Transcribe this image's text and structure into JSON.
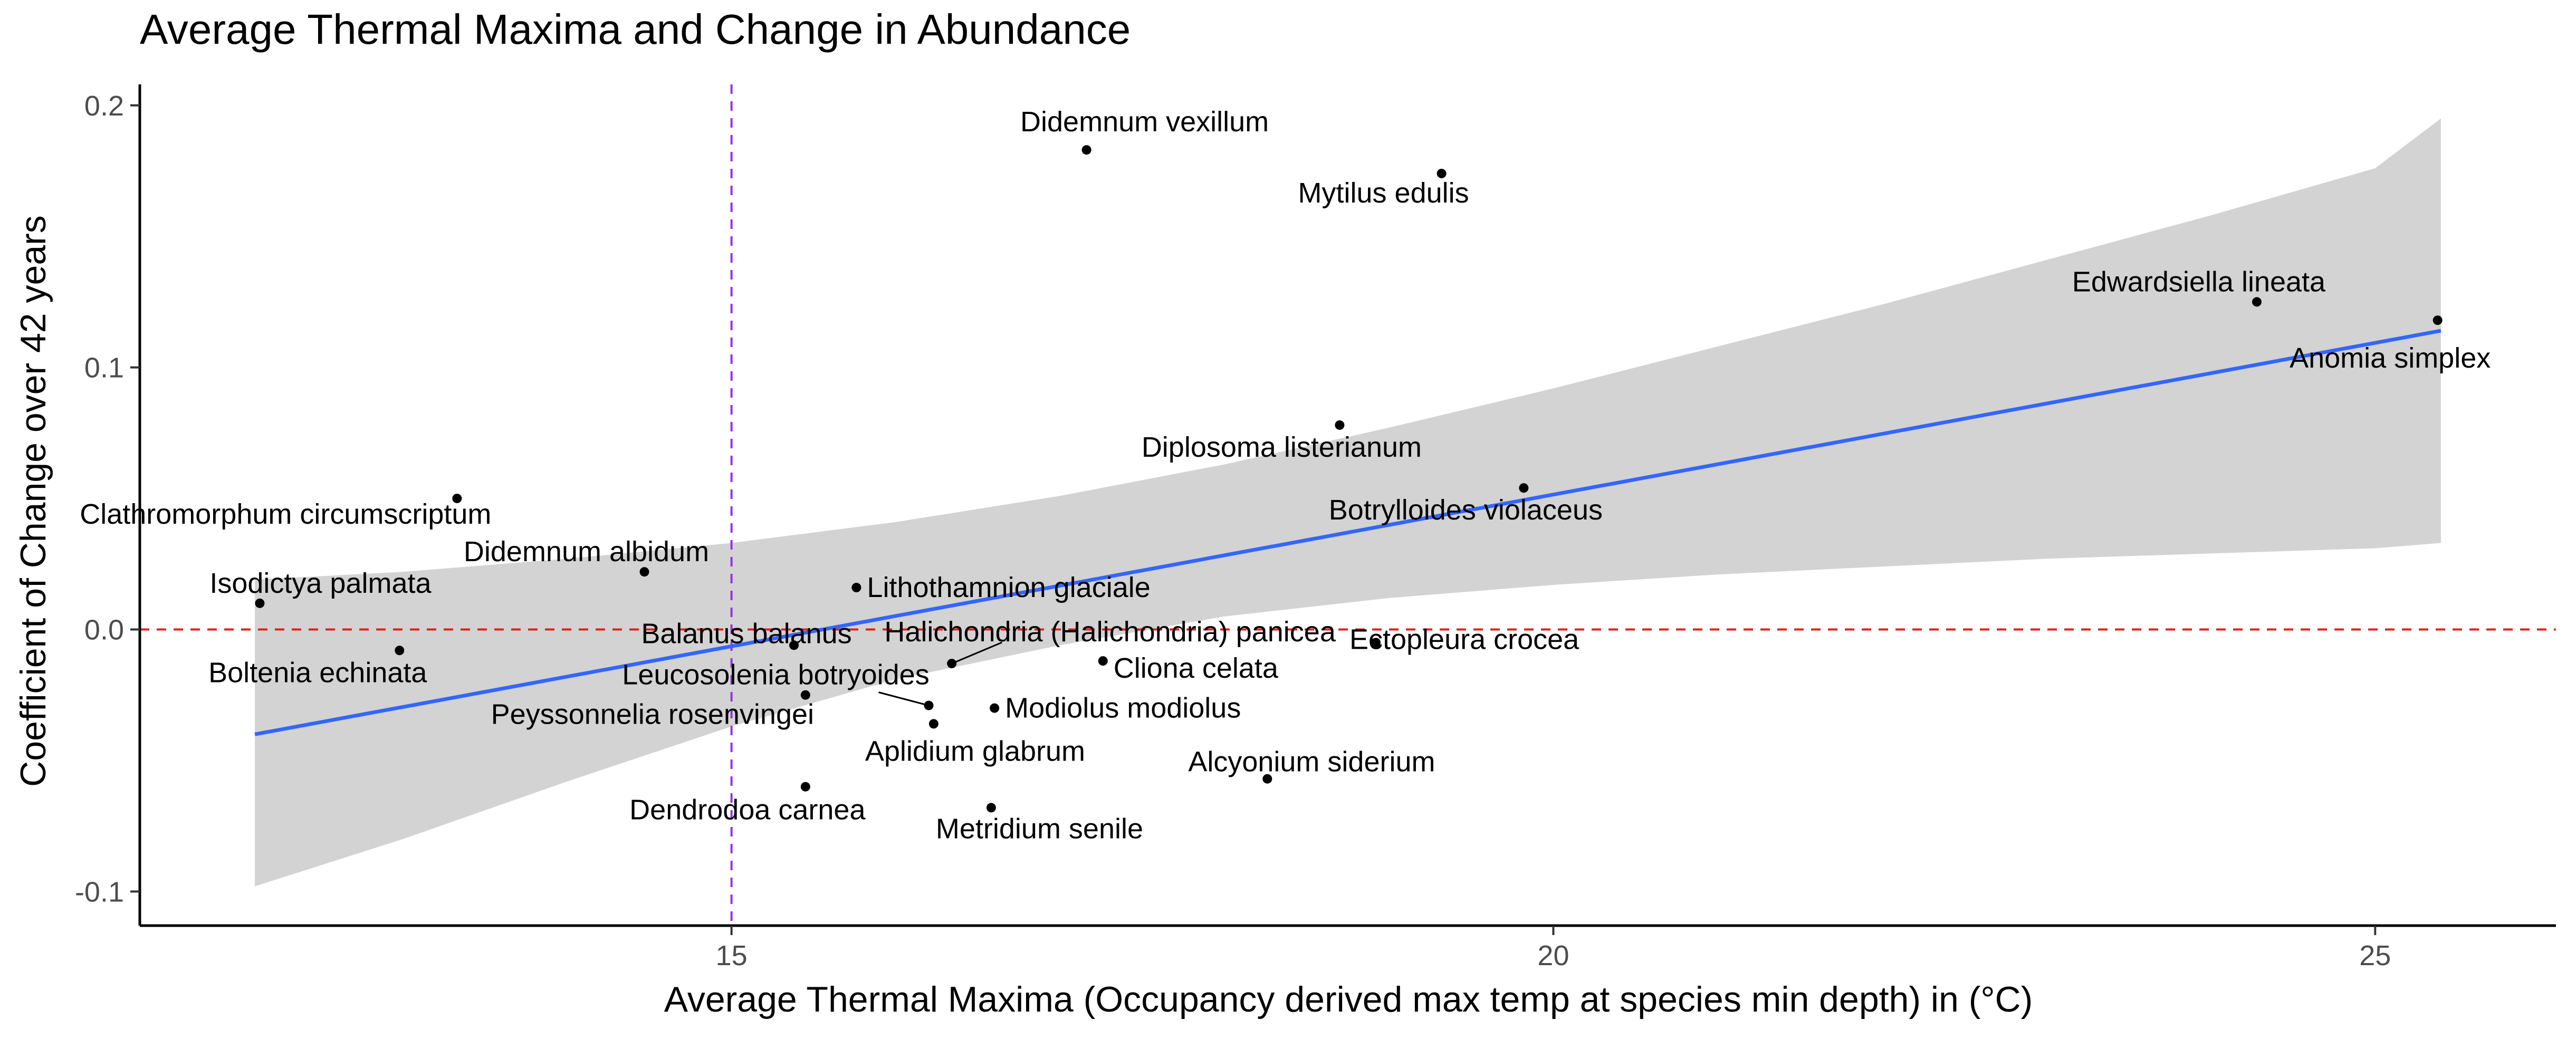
{
  "chart_data": {
    "type": "scatter",
    "title": "Average Thermal Maxima and Change in Abundance",
    "xlabel": "Average Thermal Maxima (Occupancy derived max temp at species min depth) in (°C)",
    "ylabel": "Coefficient of Change over 42 years",
    "xlim": [
      11.4,
      26.1
    ],
    "ylim": [
      -0.113,
      0.208
    ],
    "x_ticks": [
      15,
      20,
      25
    ],
    "x_tick_labels": [
      "15",
      "20",
      "25"
    ],
    "y_ticks": [
      -0.1,
      0.0,
      0.1,
      0.2
    ],
    "y_tick_labels": [
      "-0.1",
      "0.0",
      "0.1",
      "0.2"
    ],
    "reference_lines": {
      "horizontal": {
        "value": 0.0,
        "color": "#e02020",
        "style": "dashed"
      },
      "vertical": {
        "value": 15.0,
        "color": "#9b30e0",
        "style": "dashed"
      }
    },
    "trend_line": {
      "x": [
        12.1,
        25.4
      ],
      "y": [
        -0.04,
        0.114
      ],
      "color": "#3366ff"
    },
    "confidence_band": {
      "x": [
        12.1,
        13.0,
        14.0,
        15.0,
        16.0,
        17.0,
        18.0,
        19.0,
        20.0,
        21.0,
        22.0,
        23.0,
        24.0,
        25.0,
        25.4
      ],
      "upper": [
        0.019,
        0.022,
        0.027,
        0.033,
        0.041,
        0.051,
        0.063,
        0.077,
        0.092,
        0.108,
        0.124,
        0.141,
        0.158,
        0.176,
        0.195
      ],
      "lower": [
        -0.098,
        -0.08,
        -0.058,
        -0.037,
        -0.019,
        -0.006,
        0.005,
        0.012,
        0.017,
        0.021,
        0.024,
        0.027,
        0.029,
        0.031,
        0.033
      ],
      "color": "#d3d3d3"
    },
    "points": [
      {
        "name": "Didemnum vexillum",
        "x": 17.16,
        "y": 0.183
      },
      {
        "name": "Mytilus edulis",
        "x": 19.32,
        "y": 0.174
      },
      {
        "name": "Edwardsiella lineata",
        "x": 24.28,
        "y": 0.125
      },
      {
        "name": "Anomia simplex",
        "x": 25.38,
        "y": 0.118
      },
      {
        "name": "Diplosoma listerianum",
        "x": 18.7,
        "y": 0.078
      },
      {
        "name": "Botrylloides violaceus",
        "x": 19.82,
        "y": 0.054
      },
      {
        "name": "Clathromorphum circumscriptum",
        "x": 13.33,
        "y": 0.05
      },
      {
        "name": "Didemnum albidum",
        "x": 14.47,
        "y": 0.022
      },
      {
        "name": "Isodictya palmata",
        "x": 12.13,
        "y": 0.01
      },
      {
        "name": "Lithothamnion glaciale",
        "x": 15.76,
        "y": 0.016
      },
      {
        "name": "Balanus balanus",
        "x": 15.38,
        "y": -0.006
      },
      {
        "name": "Halichondria (Halichondria) panicea",
        "x": 16.34,
        "y": -0.013
      },
      {
        "name": "Ectopleura crocea",
        "x": 18.92,
        "y": -0.005
      },
      {
        "name": "Boltenia echinata",
        "x": 12.98,
        "y": -0.008
      },
      {
        "name": "Cliona celata",
        "x": 17.26,
        "y": -0.012
      },
      {
        "name": "Leucosolenia botryoides",
        "x": 16.2,
        "y": -0.029
      },
      {
        "name": "Peyssonnelia rosenvingei",
        "x": 15.45,
        "y": -0.025
      },
      {
        "name": "Modiolus modiolus",
        "x": 16.6,
        "y": -0.03
      },
      {
        "name": "Aplidium glabrum",
        "x": 16.23,
        "y": -0.036
      },
      {
        "name": "Alcyonium siderium",
        "x": 18.26,
        "y": -0.057
      },
      {
        "name": "Dendrodoa carnea",
        "x": 15.45,
        "y": -0.06
      },
      {
        "name": "Metridium senile",
        "x": 16.58,
        "y": -0.068
      }
    ]
  }
}
